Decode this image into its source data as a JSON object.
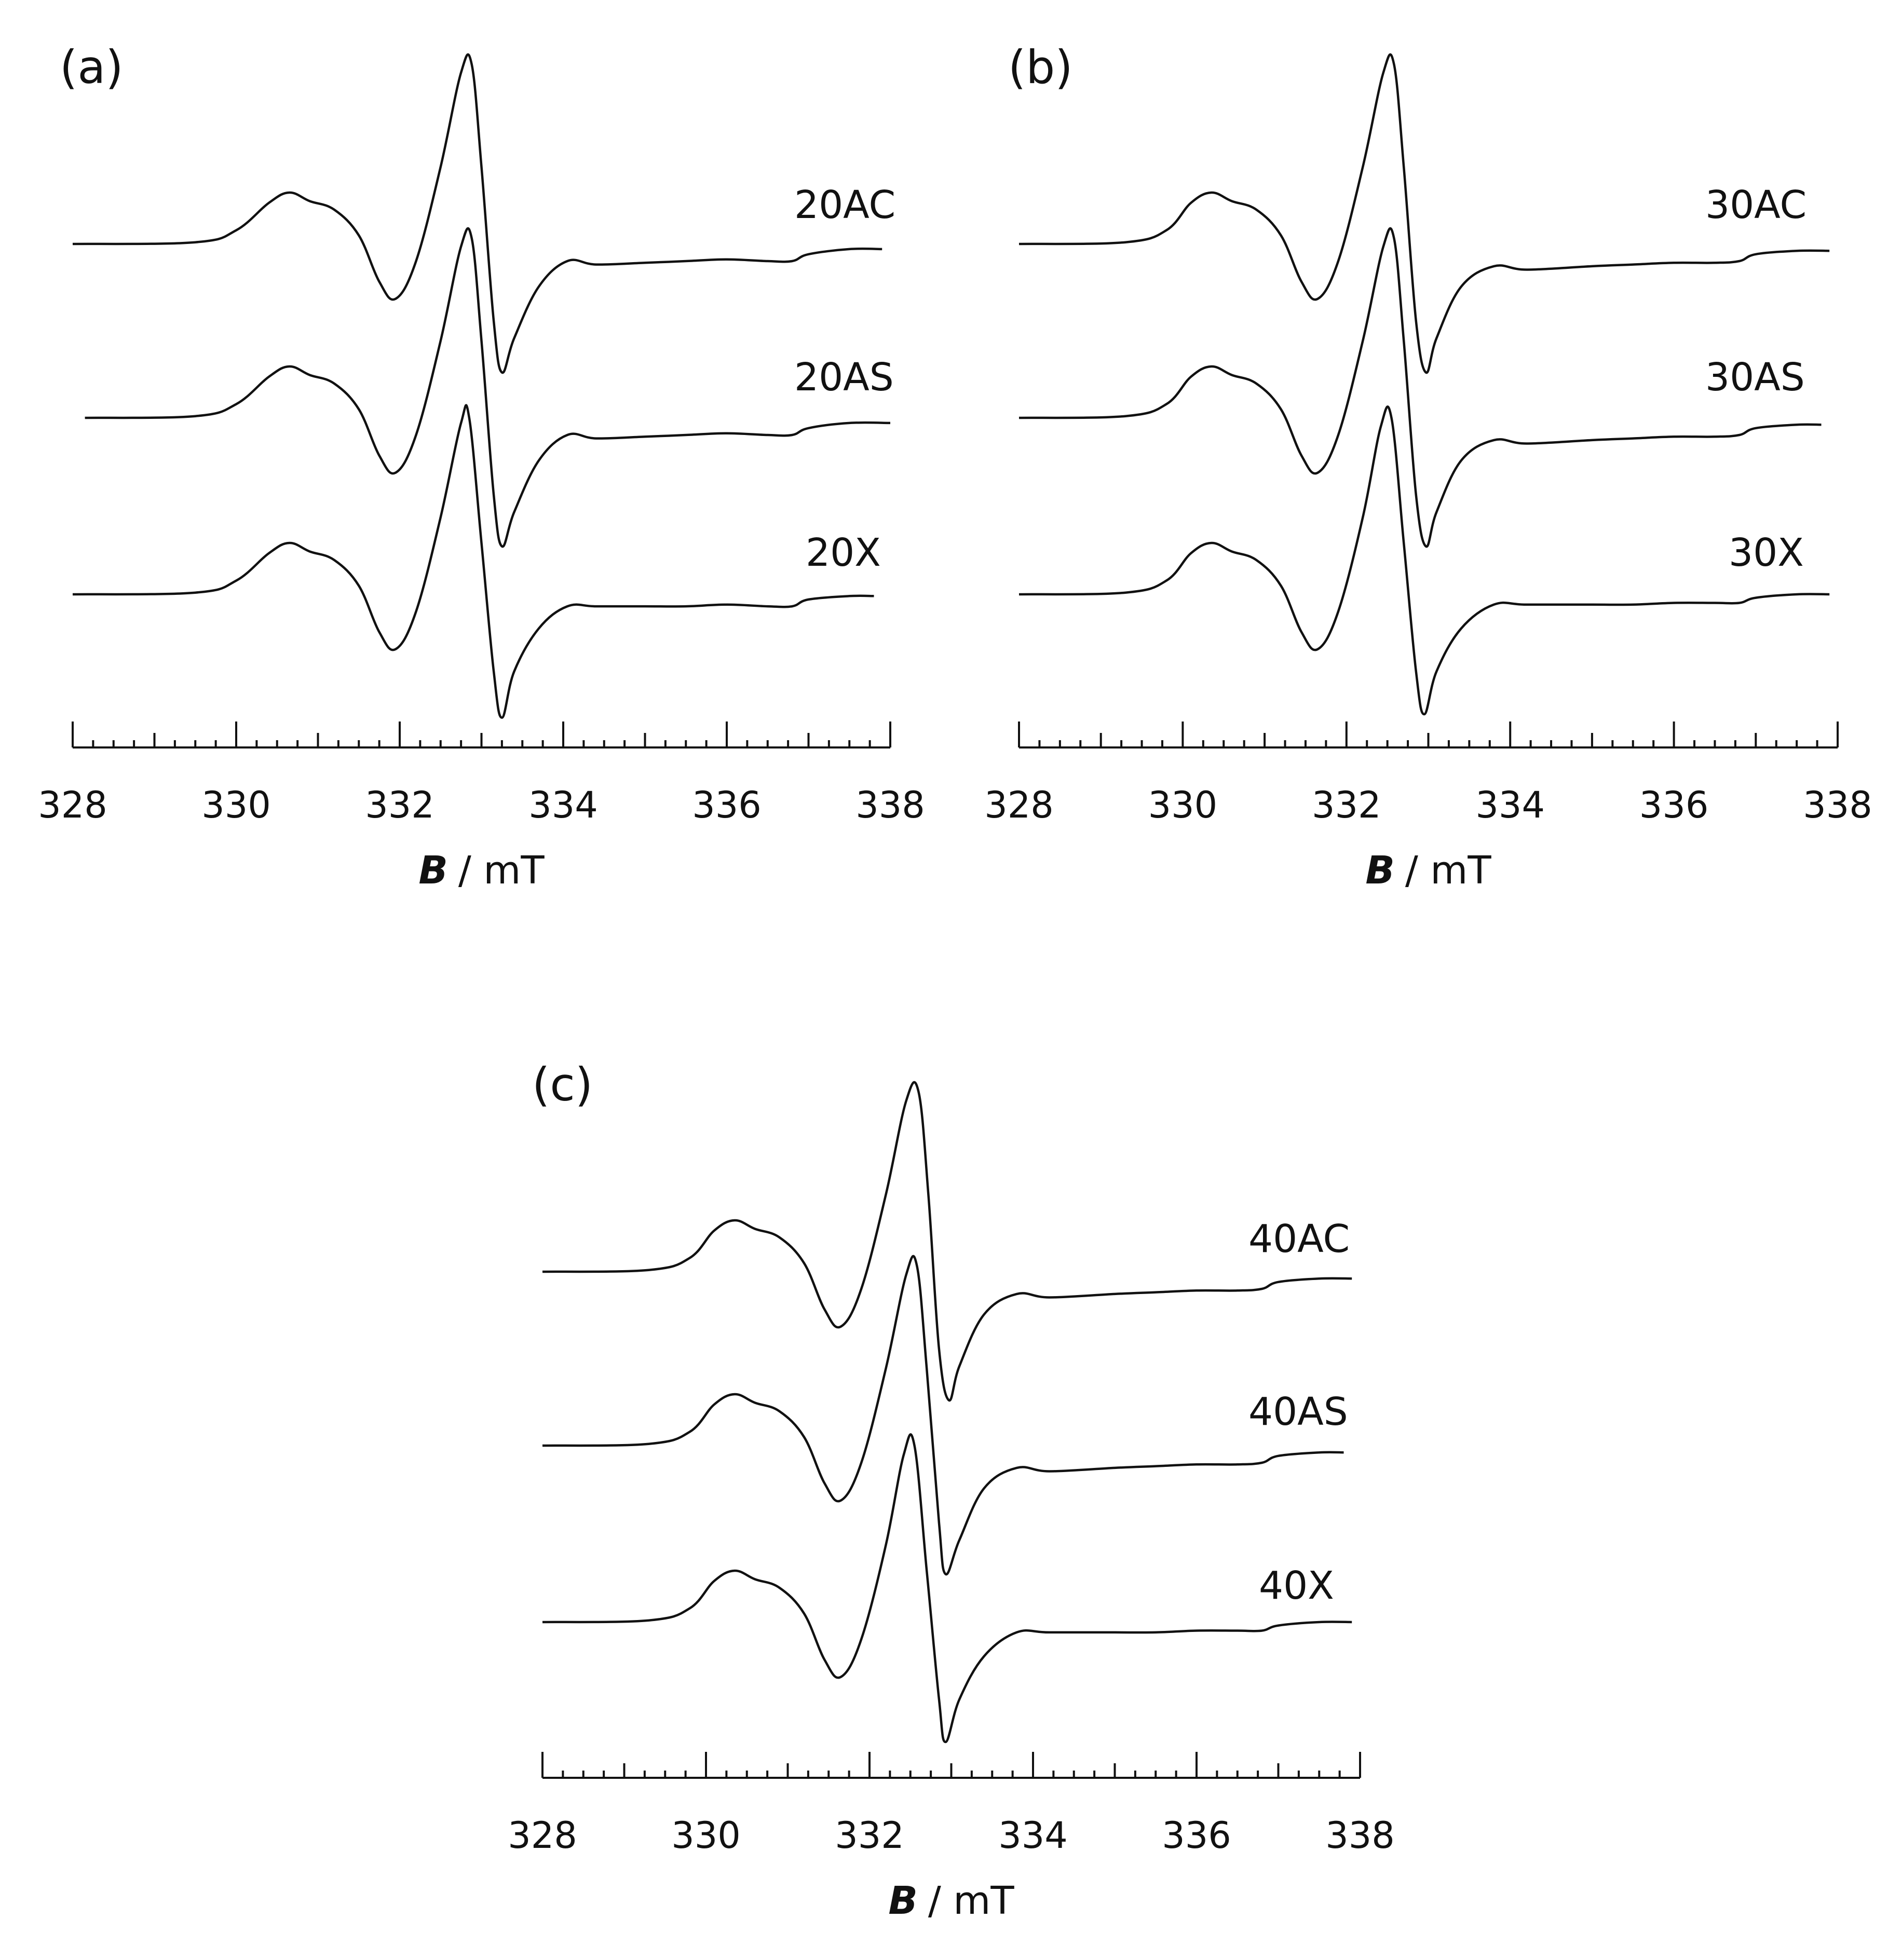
{
  "chart_data": [
    {
      "type": "line",
      "panel_label": "(a)",
      "xlabel_symbol": "B",
      "xlabel_unit": "/  mT",
      "xlim": [
        328,
        338
      ],
      "x_ticks": [
        "328",
        "330",
        "332",
        "334",
        "336",
        "338"
      ],
      "series": [
        {
          "name": "20AC",
          "x": [
            328.0,
            329.5,
            330.0,
            330.4,
            330.65,
            330.9,
            331.2,
            331.5,
            331.75,
            331.95,
            332.2,
            332.5,
            332.75,
            332.88,
            333.0,
            333.15,
            333.25,
            333.4,
            333.7,
            334.05,
            334.4,
            335.0,
            335.5,
            336.0,
            336.5,
            336.8,
            337.0,
            337.5,
            337.9
          ],
          "y": [
            0.0,
            0.01,
            0.08,
            0.24,
            0.3,
            0.25,
            0.2,
            0.05,
            -0.22,
            -0.32,
            -0.1,
            0.45,
            1.0,
            1.05,
            0.45,
            -0.45,
            -0.75,
            -0.55,
            -0.25,
            -0.1,
            -0.12,
            -0.11,
            -0.1,
            -0.09,
            -0.1,
            -0.1,
            -0.06,
            -0.03,
            -0.03
          ]
        },
        {
          "name": "20AS",
          "x": [
            328.15,
            329.5,
            330.0,
            330.4,
            330.65,
            330.9,
            331.2,
            331.5,
            331.75,
            331.95,
            332.2,
            332.5,
            332.75,
            332.88,
            333.0,
            333.15,
            333.25,
            333.4,
            333.7,
            334.05,
            334.4,
            335.0,
            335.5,
            336.0,
            336.5,
            336.8,
            337.0,
            337.5,
            338.0
          ],
          "y": [
            0.0,
            0.01,
            0.08,
            0.24,
            0.3,
            0.25,
            0.2,
            0.05,
            -0.22,
            -0.32,
            -0.1,
            0.45,
            1.0,
            1.05,
            0.45,
            -0.45,
            -0.75,
            -0.55,
            -0.25,
            -0.1,
            -0.12,
            -0.11,
            -0.1,
            -0.09,
            -0.1,
            -0.1,
            -0.06,
            -0.03,
            -0.03
          ]
        },
        {
          "name": "20X",
          "x": [
            328.0,
            329.5,
            330.0,
            330.4,
            330.65,
            330.9,
            331.2,
            331.5,
            331.75,
            331.95,
            332.2,
            332.5,
            332.75,
            332.85,
            333.0,
            333.15,
            333.25,
            333.4,
            333.7,
            334.05,
            334.4,
            335.0,
            335.5,
            336.0,
            336.5,
            336.8,
            337.0,
            337.5,
            337.8
          ],
          "y": [
            0.0,
            0.01,
            0.08,
            0.24,
            0.3,
            0.25,
            0.2,
            0.05,
            -0.22,
            -0.32,
            -0.1,
            0.45,
            1.0,
            1.03,
            0.3,
            -0.45,
            -0.72,
            -0.45,
            -0.2,
            -0.07,
            -0.07,
            -0.07,
            -0.07,
            -0.06,
            -0.07,
            -0.07,
            -0.03,
            -0.01,
            -0.01
          ]
        }
      ]
    },
    {
      "type": "line",
      "panel_label": "(b)",
      "xlabel_symbol": "B",
      "xlabel_unit": "/  mT",
      "xlim": [
        328,
        338
      ],
      "x_ticks": [
        "328",
        "330",
        "332",
        "334",
        "336",
        "338"
      ],
      "series": [
        {
          "name": "30AC",
          "x": [
            328.0,
            329.3,
            329.8,
            330.1,
            330.35,
            330.6,
            330.9,
            331.2,
            331.45,
            331.65,
            331.9,
            332.2,
            332.45,
            332.58,
            332.7,
            332.85,
            332.97,
            333.1,
            333.4,
            333.8,
            334.2,
            335.0,
            335.5,
            336.0,
            336.5,
            336.8,
            337.0,
            337.5,
            337.9
          ],
          "y": [
            0.0,
            0.01,
            0.08,
            0.24,
            0.3,
            0.25,
            0.2,
            0.05,
            -0.22,
            -0.32,
            -0.1,
            0.45,
            1.0,
            1.05,
            0.45,
            -0.45,
            -0.75,
            -0.55,
            -0.25,
            -0.13,
            -0.15,
            -0.13,
            -0.12,
            -0.11,
            -0.11,
            -0.1,
            -0.06,
            -0.04,
            -0.04
          ]
        },
        {
          "name": "30AS",
          "x": [
            328.0,
            329.3,
            329.8,
            330.1,
            330.35,
            330.6,
            330.9,
            331.2,
            331.45,
            331.65,
            331.9,
            332.2,
            332.45,
            332.58,
            332.7,
            332.85,
            332.97,
            333.1,
            333.4,
            333.8,
            334.2,
            335.0,
            335.5,
            336.0,
            336.5,
            336.8,
            337.0,
            337.5,
            337.8
          ],
          "y": [
            0.0,
            0.01,
            0.08,
            0.24,
            0.3,
            0.25,
            0.2,
            0.05,
            -0.22,
            -0.32,
            -0.1,
            0.45,
            1.0,
            1.05,
            0.45,
            -0.45,
            -0.75,
            -0.55,
            -0.25,
            -0.13,
            -0.15,
            -0.13,
            -0.12,
            -0.11,
            -0.11,
            -0.1,
            -0.06,
            -0.04,
            -0.04
          ]
        },
        {
          "name": "30X",
          "x": [
            328.0,
            329.3,
            329.8,
            330.1,
            330.35,
            330.6,
            330.9,
            331.2,
            331.45,
            331.65,
            331.9,
            332.2,
            332.42,
            332.55,
            332.7,
            332.85,
            332.95,
            333.1,
            333.4,
            333.8,
            334.2,
            335.0,
            335.5,
            336.0,
            336.5,
            336.8,
            337.0,
            337.5,
            337.9
          ],
          "y": [
            0.0,
            0.01,
            0.08,
            0.24,
            0.3,
            0.25,
            0.2,
            0.05,
            -0.22,
            -0.32,
            -0.1,
            0.45,
            0.98,
            1.03,
            0.3,
            -0.45,
            -0.7,
            -0.45,
            -0.2,
            -0.06,
            -0.06,
            -0.06,
            -0.06,
            -0.05,
            -0.05,
            -0.05,
            -0.02,
            0.0,
            0.0
          ]
        }
      ]
    },
    {
      "type": "line",
      "panel_label": "(c)",
      "xlabel_symbol": "B",
      "xlabel_unit": "/  mT",
      "xlim": [
        328,
        338
      ],
      "x_ticks": [
        "328",
        "330",
        "332",
        "334",
        "336",
        "338"
      ],
      "series": [
        {
          "name": "40AC",
          "x": [
            328.0,
            329.3,
            329.8,
            330.1,
            330.35,
            330.6,
            330.9,
            331.2,
            331.45,
            331.65,
            331.9,
            332.2,
            332.45,
            332.6,
            332.72,
            332.85,
            332.97,
            333.1,
            333.4,
            333.8,
            334.2,
            335.0,
            335.5,
            336.0,
            336.5,
            336.8,
            337.0,
            337.5,
            337.9
          ],
          "y": [
            0.0,
            0.01,
            0.08,
            0.24,
            0.3,
            0.25,
            0.2,
            0.05,
            -0.22,
            -0.32,
            -0.1,
            0.45,
            1.0,
            1.05,
            0.45,
            -0.45,
            -0.75,
            -0.55,
            -0.25,
            -0.13,
            -0.15,
            -0.13,
            -0.12,
            -0.11,
            -0.11,
            -0.1,
            -0.06,
            -0.04,
            -0.04
          ]
        },
        {
          "name": "40AS",
          "x": [
            328.0,
            329.3,
            329.8,
            330.1,
            330.35,
            330.6,
            330.9,
            331.2,
            331.45,
            331.65,
            331.9,
            332.2,
            332.45,
            332.58,
            332.7,
            332.85,
            332.93,
            333.1,
            333.4,
            333.8,
            334.2,
            335.0,
            335.5,
            336.0,
            336.5,
            336.8,
            337.0,
            337.5,
            337.8
          ],
          "y": [
            0.0,
            0.01,
            0.08,
            0.24,
            0.3,
            0.25,
            0.2,
            0.05,
            -0.22,
            -0.32,
            -0.1,
            0.45,
            1.0,
            1.05,
            0.45,
            -0.45,
            -0.75,
            -0.55,
            -0.25,
            -0.13,
            -0.15,
            -0.13,
            -0.12,
            -0.11,
            -0.11,
            -0.1,
            -0.06,
            -0.04,
            -0.04
          ]
        },
        {
          "name": "40X",
          "x": [
            328.0,
            329.3,
            329.8,
            330.1,
            330.35,
            330.6,
            330.9,
            331.2,
            331.45,
            331.65,
            331.9,
            332.2,
            332.42,
            332.55,
            332.7,
            332.85,
            332.93,
            333.1,
            333.4,
            333.8,
            334.2,
            335.0,
            335.5,
            336.0,
            336.5,
            336.8,
            337.0,
            337.5,
            337.9
          ],
          "y": [
            0.0,
            0.01,
            0.08,
            0.24,
            0.3,
            0.25,
            0.2,
            0.05,
            -0.22,
            -0.32,
            -0.1,
            0.45,
            0.98,
            1.03,
            0.3,
            -0.45,
            -0.7,
            -0.45,
            -0.2,
            -0.06,
            -0.06,
            -0.06,
            -0.06,
            -0.05,
            -0.05,
            -0.05,
            -0.02,
            0.0,
            0.0
          ]
        }
      ]
    }
  ]
}
